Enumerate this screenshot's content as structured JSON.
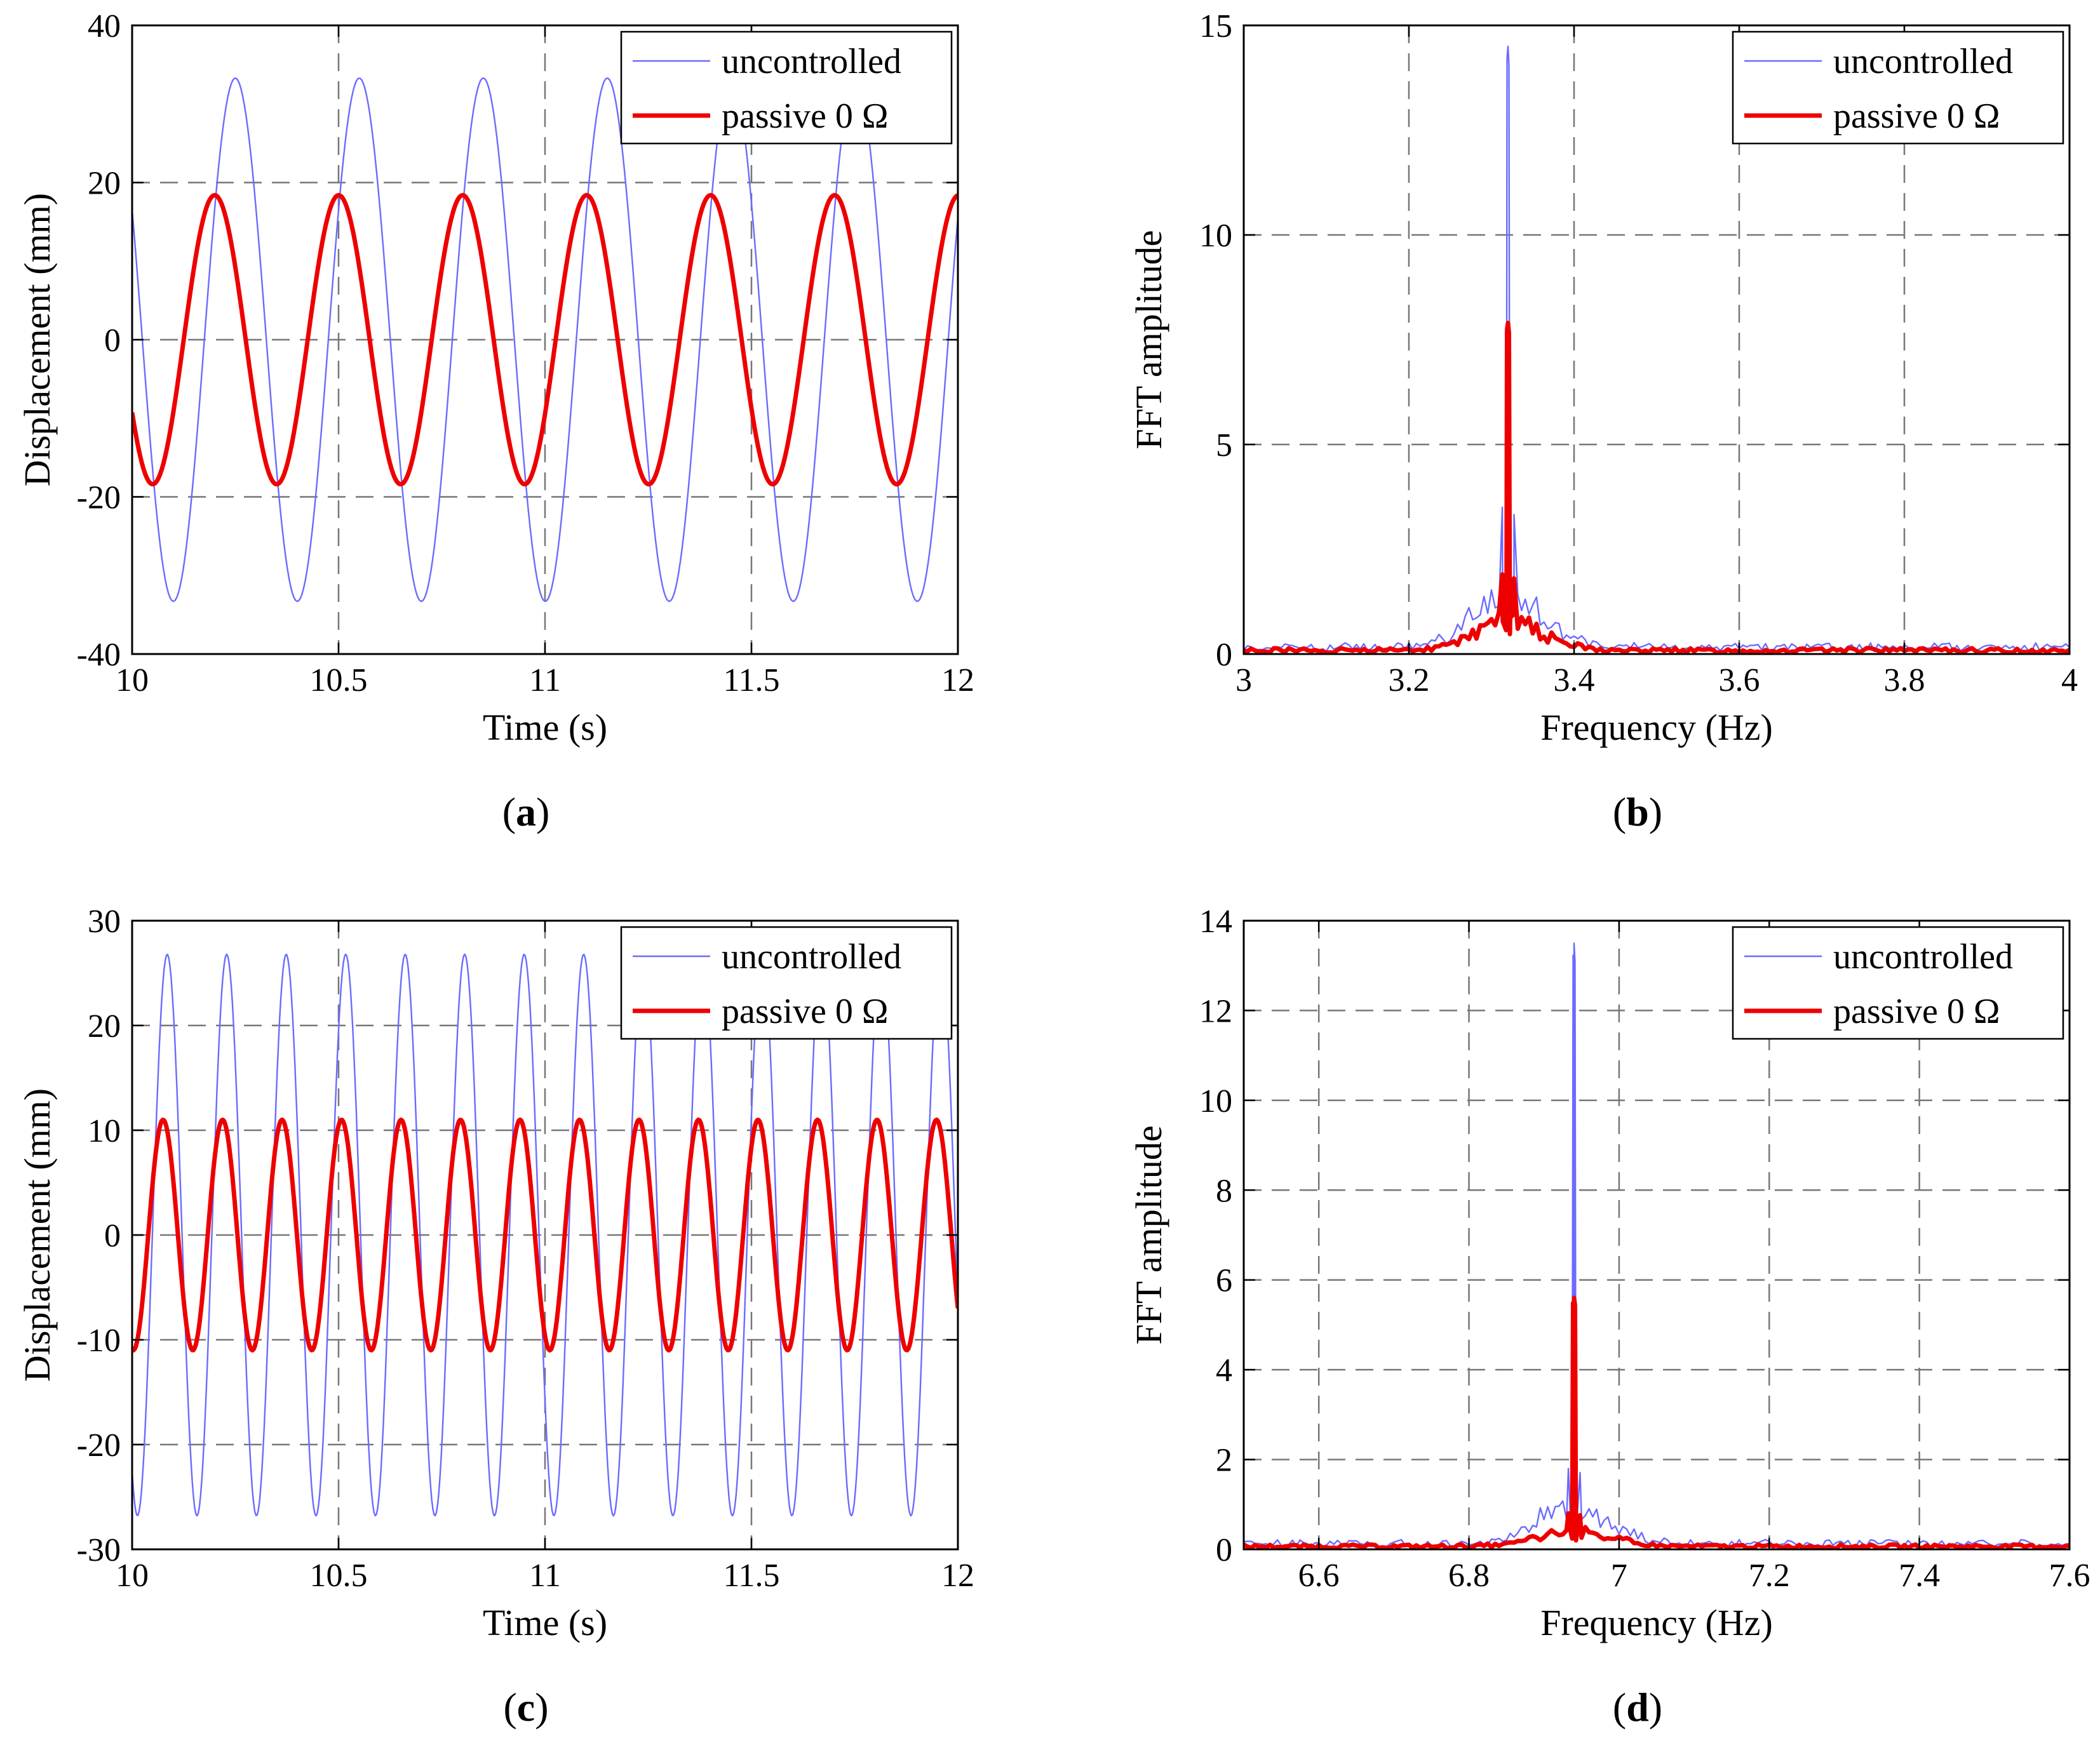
{
  "colors": {
    "uncontrolled": "#6b6bff",
    "passive": "#ee0000",
    "grid": "#777777"
  },
  "chart_data": [
    {
      "panel": "a",
      "type": "line",
      "caption": {
        "open": "(",
        "letter": "a",
        "close": ")"
      },
      "xlabel": "Time (s)",
      "ylabel": "Displacement (mm)",
      "xlim": [
        10,
        12
      ],
      "ylim": [
        -40,
        40
      ],
      "xticks": [
        10,
        10.5,
        11,
        11.5,
        12
      ],
      "xtick_labels": [
        "10",
        "10.5",
        "11",
        "11.5",
        "12"
      ],
      "yticks": [
        -40,
        -20,
        0,
        20,
        40
      ],
      "ytick_labels": [
        "-40",
        "-20",
        "0",
        "20",
        "40"
      ],
      "grid": true,
      "legend": {
        "position": "top-right",
        "entries": [
          "uncontrolled",
          "passive 0 Ω"
        ]
      },
      "series": [
        {
          "name": "uncontrolled",
          "kind": "sine",
          "amplitude": 33.3,
          "frequency_hz": 3.33,
          "phase_peak_t": 10.25,
          "samples": 500
        },
        {
          "name": "passive 0 Ω",
          "kind": "sine",
          "amplitude": 18.4,
          "frequency_hz": 3.33,
          "phase_peak_t": 10.2,
          "samples": 500
        }
      ]
    },
    {
      "panel": "b",
      "type": "line",
      "caption": {
        "open": "(",
        "letter": "b",
        "close": ")"
      },
      "xlabel": "Frequency (Hz)",
      "ylabel": "FFT amplitude",
      "xlim": [
        3,
        4
      ],
      "ylim": [
        0,
        15
      ],
      "xticks": [
        3,
        3.2,
        3.4,
        3.6,
        3.8,
        4
      ],
      "xtick_labels": [
        "3",
        "3.2",
        "3.4",
        "3.6",
        "3.8",
        "4"
      ],
      "yticks": [
        0,
        5,
        10,
        15
      ],
      "ytick_labels": [
        "0",
        "5",
        "10",
        "15"
      ],
      "grid": true,
      "legend": {
        "position": "top-right",
        "entries": [
          "uncontrolled",
          "passive 0 Ω"
        ]
      },
      "series": [
        {
          "name": "uncontrolled",
          "kind": "spectrum",
          "peak_x": 3.32,
          "peak_y": 14.5,
          "sidelobe_y": 3.5,
          "floor_y": 0.15,
          "skirt_y": 1.4
        },
        {
          "name": "passive 0 Ω",
          "kind": "spectrum",
          "peak_x": 3.32,
          "peak_y": 7.9,
          "sidelobe_y": 1.9,
          "floor_y": 0.08,
          "skirt_y": 0.8
        }
      ]
    },
    {
      "panel": "c",
      "type": "line",
      "caption": {
        "open": "(",
        "letter": "c",
        "close": ")"
      },
      "xlabel": "Time (s)",
      "ylabel": "Displacement (mm)",
      "xlim": [
        10,
        12
      ],
      "ylim": [
        -30,
        30
      ],
      "xticks": [
        10,
        10.5,
        11,
        11.5,
        12
      ],
      "xtick_labels": [
        "10",
        "10.5",
        "11",
        "11.5",
        "12"
      ],
      "yticks": [
        -30,
        -20,
        -10,
        0,
        10,
        20,
        30
      ],
      "ytick_labels": [
        "-30",
        "-20",
        "-10",
        "0",
        "10",
        "20",
        "30"
      ],
      "grid": true,
      "legend": {
        "position": "top-right",
        "entries": [
          "uncontrolled",
          "passive 0 Ω"
        ]
      },
      "series": [
        {
          "name": "uncontrolled",
          "kind": "sine",
          "amplitude": 26.8,
          "frequency_hz": 6.94,
          "phase_peak_t": 10.085,
          "samples": 700
        },
        {
          "name": "passive 0 Ω",
          "kind": "sine",
          "amplitude": 11.0,
          "frequency_hz": 6.94,
          "phase_peak_t": 10.075,
          "samples": 700
        }
      ]
    },
    {
      "panel": "d",
      "type": "line",
      "caption": {
        "open": "(",
        "letter": "d",
        "close": ")"
      },
      "xlabel": "Frequency (Hz)",
      "ylabel": "FFT amplitude",
      "xlim": [
        6.5,
        7.6
      ],
      "ylim": [
        0,
        14
      ],
      "xticks": [
        6.6,
        6.8,
        7,
        7.2,
        7.4,
        7.6
      ],
      "xtick_labels": [
        "6.6",
        "6.8",
        "7",
        "7.2",
        "7.4",
        "7.6"
      ],
      "yticks": [
        0,
        2,
        4,
        6,
        8,
        10,
        12,
        14
      ],
      "ytick_labels": [
        "0",
        "2",
        "4",
        "6",
        "8",
        "10",
        "12",
        "14"
      ],
      "grid": true,
      "legend": {
        "position": "top-right",
        "entries": [
          "uncontrolled",
          "passive 0 Ω"
        ]
      },
      "series": [
        {
          "name": "uncontrolled",
          "kind": "spectrum",
          "peak_x": 6.94,
          "peak_y": 13.5,
          "sidelobe_y": 1.8,
          "floor_y": 0.12,
          "skirt_y": 1.0
        },
        {
          "name": "passive 0 Ω",
          "kind": "spectrum",
          "peak_x": 6.94,
          "peak_y": 5.6,
          "sidelobe_y": 0.8,
          "floor_y": 0.06,
          "skirt_y": 0.4
        }
      ]
    }
  ]
}
